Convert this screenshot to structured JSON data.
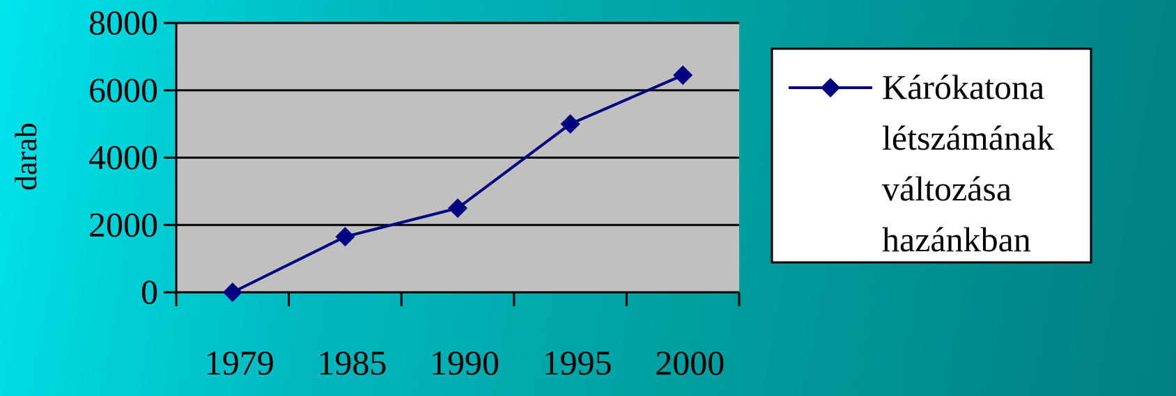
{
  "chart_data": {
    "type": "line",
    "categories": [
      "1979",
      "1985",
      "1990",
      "1995",
      "2000"
    ],
    "series": [
      {
        "name": "Kárókatona létszámának változása hazánkban",
        "values": [
          0,
          1650,
          2500,
          5000,
          6450
        ]
      }
    ],
    "xlabel": "",
    "ylabel": "darab",
    "ylim": [
      0,
      8000
    ],
    "yticks": [
      "0",
      "2000",
      "4000",
      "6000",
      "8000"
    ],
    "grid": true,
    "legend_position": "right",
    "legend_lines": [
      "Kárókatona",
      "létszámának",
      "változása",
      "hazánkban"
    ],
    "colors": {
      "series": "#000080",
      "plot_background": "#c0c0c0",
      "gridline": "#000000",
      "legend_background": "#ffffff"
    },
    "marker": "diamond"
  }
}
